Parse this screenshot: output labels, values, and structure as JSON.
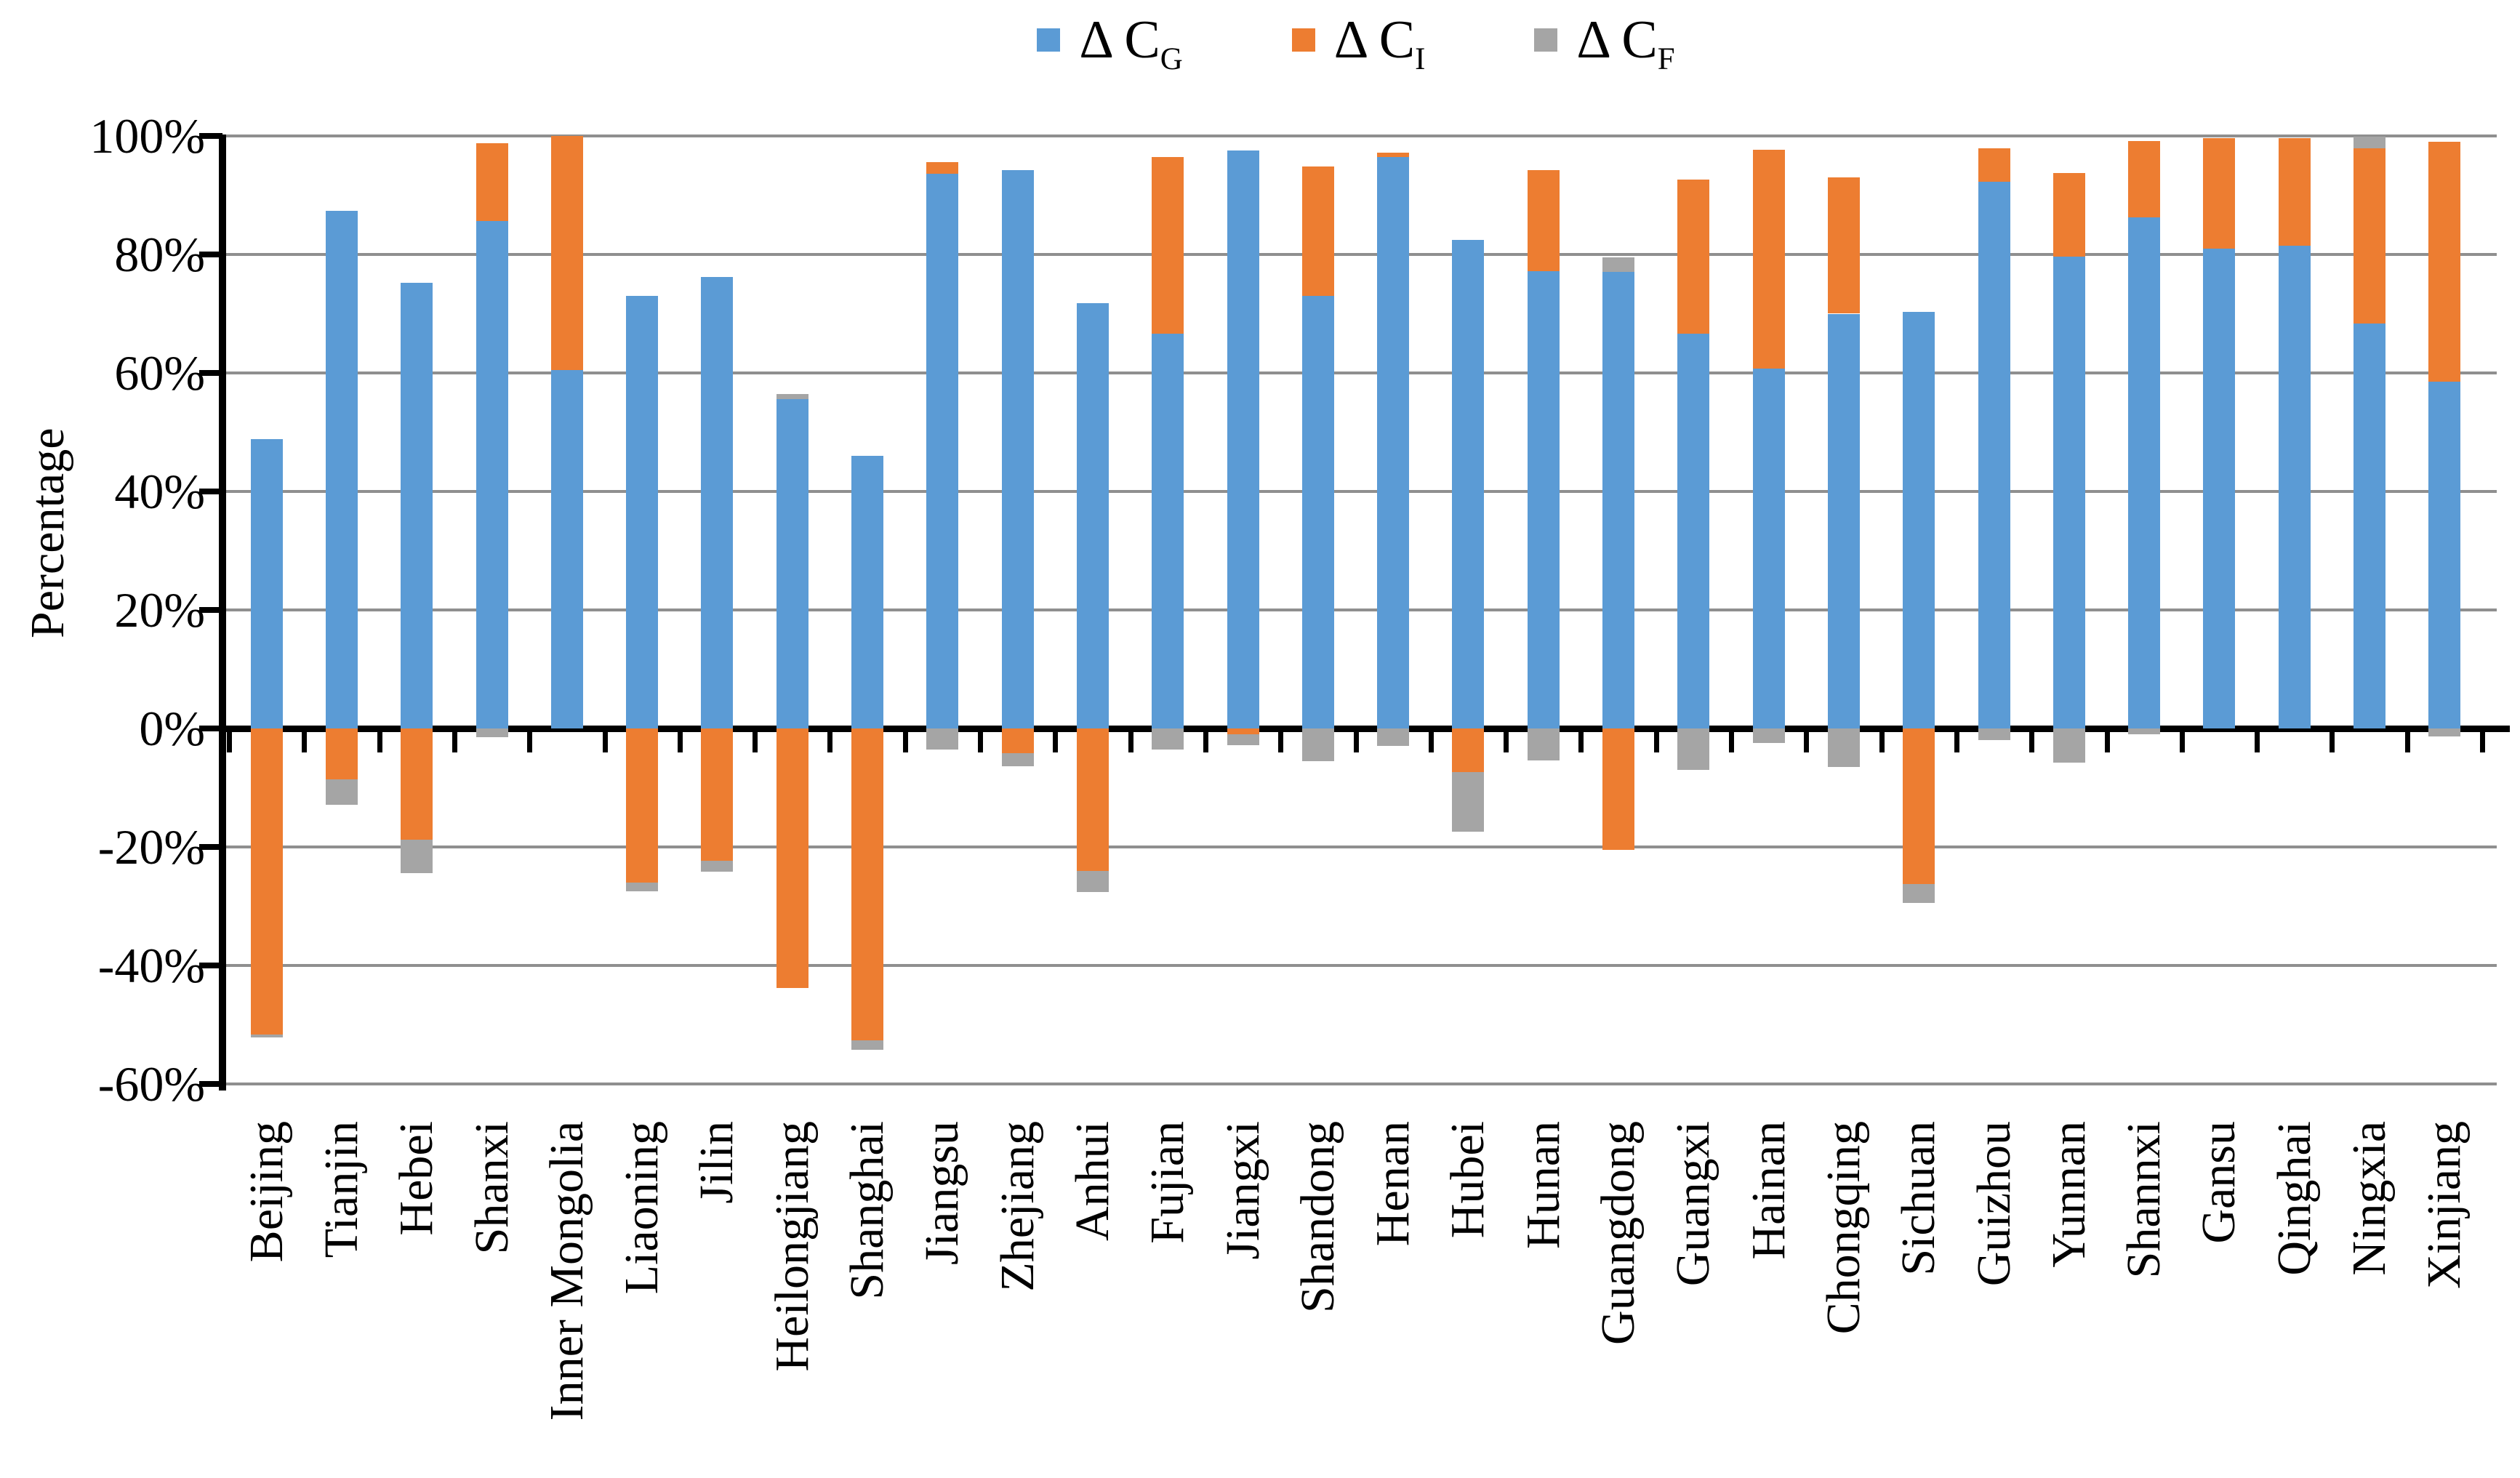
{
  "axes": {
    "ylabel": "Percentage",
    "yticks": [
      "100%",
      "80%",
      "60%",
      "40%",
      "20%",
      "0%",
      "-20%",
      "-40%",
      "-60%"
    ],
    "ytick_values": [
      100,
      80,
      60,
      40,
      20,
      0,
      -20,
      -40,
      -60
    ]
  },
  "chart_data": {
    "type": "bar",
    "stacked": true,
    "title": "",
    "xlabel": "",
    "ylabel": "Percentage",
    "ylim": [
      -60,
      100
    ],
    "ystep": 20,
    "grid": "horizontal",
    "legend_position": "top-center",
    "categories": [
      "Beijing",
      "Tianjin",
      "Hebei",
      "Shanxi",
      "Inner Mongolia",
      "Liaoning",
      "Jilin",
      "Heilongjiang",
      "Shanghai",
      "Jiangsu",
      "Zhejiang",
      "Anhui",
      "Fujian",
      "Jiangxi",
      "Shandong",
      "Henan",
      "Hubei",
      "Hunan",
      "Guangdong",
      "Guangxi",
      "Hainan",
      "Chongqing",
      "Sichuan",
      "Guizhou",
      "Yunnan",
      "Shannxi",
      "Gansu",
      "Qinghai",
      "Ningxia",
      "Xinjiang"
    ],
    "series": [
      {
        "name": "Δ C_G",
        "label_main": "Δ C",
        "label_sub": "G",
        "color": "#5B9BD5",
        "values": [
          48.8,
          87.4,
          75.2,
          85.6,
          60.5,
          73.0,
          76.2,
          55.6,
          46.0,
          93.6,
          94.2,
          71.8,
          66.6,
          97.5,
          73.0,
          96.4,
          82.4,
          77.2,
          77.0,
          66.6,
          60.7,
          70.0,
          70.3,
          92.3,
          79.6,
          86.2,
          81.0,
          81.5,
          68.3,
          58.5
        ]
      },
      {
        "name": "Δ C_I",
        "label_main": "Δ C",
        "label_sub": "I",
        "color": "#ED7D31",
        "values": [
          -51.6,
          -8.6,
          -18.8,
          13.2,
          39.5,
          -26.0,
          -22.3,
          -43.8,
          -52.6,
          2.0,
          -4.2,
          -24.0,
          29.8,
          -1.0,
          21.9,
          0.8,
          -7.4,
          17.0,
          -20.5,
          26.0,
          37.0,
          23.0,
          -26.2,
          5.6,
          14.2,
          12.9,
          18.6,
          18.1,
          29.6,
          40.5
        ]
      },
      {
        "name": "Δ C_F",
        "label_main": "Δ C",
        "label_sub": "F",
        "color": "#A5A5A5",
        "values": [
          -0.5,
          -4.3,
          -5.6,
          -1.5,
          0,
          -1.5,
          -1.9,
          0.8,
          -1.6,
          -3.6,
          -2.2,
          -3.6,
          -3.5,
          -1.8,
          -5.5,
          -2.9,
          -10.0,
          -5.4,
          2.5,
          -7.0,
          -2.4,
          -6.5,
          -3.2,
          -2.0,
          -5.8,
          -1.0,
          0,
          0,
          2.0,
          -1.4
        ]
      }
    ]
  }
}
